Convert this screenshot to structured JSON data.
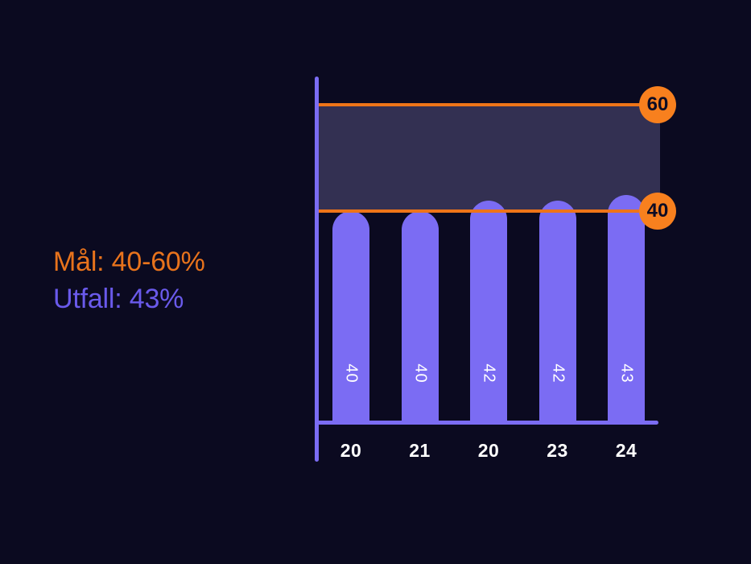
{
  "legend": {
    "goal_label": "Mål: 40-60%",
    "outcome_label": "Utfall: 43%"
  },
  "chart_data": {
    "type": "bar",
    "categories": [
      "20",
      "21",
      "20",
      "23",
      "24"
    ],
    "values": [
      40,
      40,
      42,
      42,
      43
    ],
    "bar_labels": [
      "40",
      "40",
      "42",
      "42",
      "43"
    ],
    "target_band": {
      "min": 40,
      "max": 60,
      "min_label": "40",
      "max_label": "60"
    },
    "ylim": [
      0,
      65
    ],
    "title": "",
    "xlabel": "",
    "ylabel": "",
    "grid": false,
    "legend_position": "left"
  },
  "colors": {
    "background": "#0b0a20",
    "bar": "#7b6cf3",
    "axis": "#7b6cf3",
    "target_line": "#ee7418",
    "badge": "#f8801e",
    "badge_text": "#0d0c24",
    "band": "#333052",
    "goal_text": "#e8731c",
    "outcome_text": "#6a5aeb",
    "value_text": "#ffffff"
  }
}
